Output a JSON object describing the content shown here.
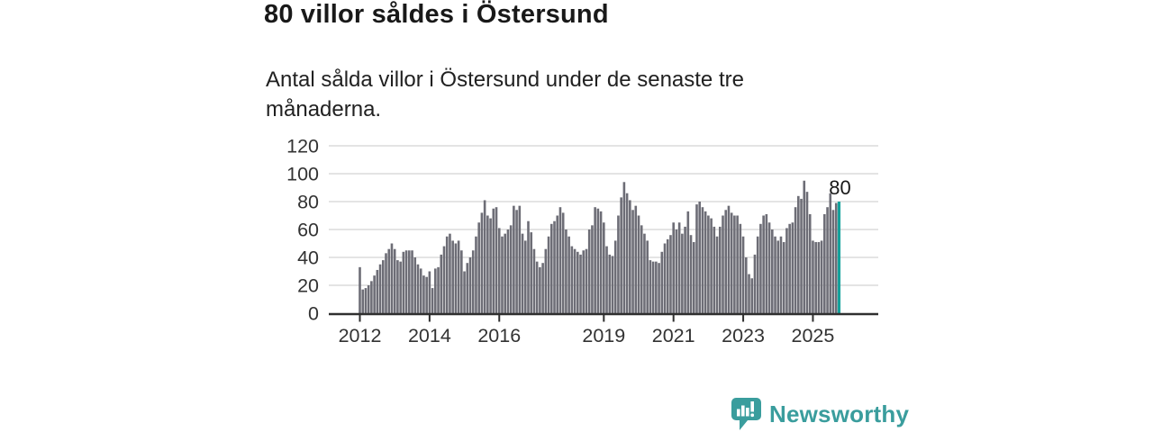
{
  "title": "80 villor såldes i Östersund",
  "subtitle": "Antal sålda villor i Östersund under de senaste tre månaderna.",
  "branding": {
    "logo_text": "Newsworthy",
    "brand_color": "#3a9d9d"
  },
  "chart_data": {
    "type": "bar",
    "title": "80 villor såldes i Östersund",
    "xlabel": "",
    "ylabel": "",
    "x_unit": "month",
    "x_range": "Jan 2012 - Oct 2025",
    "ylim": [
      0,
      120
    ],
    "grid": true,
    "legend": "none",
    "bar_color": "#6d6d76",
    "axis_color": "#2f2f2f",
    "grid_color": "#dcdcdc",
    "yticks": [
      0,
      20,
      40,
      60,
      80,
      100,
      120
    ],
    "xticks": [
      {
        "label": "2012",
        "month_index": 0
      },
      {
        "label": "2014",
        "month_index": 24
      },
      {
        "label": "2016",
        "month_index": 48
      },
      {
        "label": "2019",
        "month_index": 84
      },
      {
        "label": "2021",
        "month_index": 108
      },
      {
        "label": "2023",
        "month_index": 132
      },
      {
        "label": "2025",
        "month_index": 156
      }
    ],
    "values": [
      33,
      17,
      18,
      20,
      23,
      27,
      31,
      35,
      38,
      43,
      46,
      50,
      46,
      38,
      37,
      44,
      45,
      45,
      45,
      40,
      35,
      32,
      27,
      26,
      30,
      18,
      32,
      33,
      42,
      48,
      55,
      57,
      52,
      50,
      52,
      45,
      30,
      36,
      40,
      45,
      55,
      65,
      72,
      81,
      70,
      68,
      75,
      76,
      61,
      55,
      57,
      60,
      63,
      77,
      74,
      77,
      57,
      52,
      66,
      58,
      46,
      37,
      33,
      36,
      46,
      55,
      64,
      66,
      70,
      76,
      72,
      60,
      55,
      48,
      46,
      44,
      42,
      45,
      46,
      60,
      63,
      76,
      75,
      73,
      65,
      48,
      42,
      41,
      52,
      70,
      83,
      94,
      86,
      81,
      74,
      77,
      70,
      63,
      57,
      52,
      38,
      37,
      37,
      36,
      44,
      50,
      53,
      56,
      65,
      60,
      65,
      57,
      62,
      73,
      56,
      51,
      78,
      80,
      76,
      73,
      70,
      68,
      62,
      55,
      62,
      70,
      74,
      77,
      72,
      70,
      70,
      64,
      55,
      40,
      28,
      25,
      42,
      55,
      64,
      70,
      71,
      65,
      60,
      55,
      52,
      55,
      51,
      61,
      64,
      65,
      76,
      84,
      82,
      95,
      87,
      71,
      52,
      51,
      51,
      52,
      71,
      76,
      86,
      74,
      79,
      80
    ],
    "highlight": {
      "index": 165,
      "value": 80,
      "label": "80",
      "color": "#16a29c"
    }
  }
}
